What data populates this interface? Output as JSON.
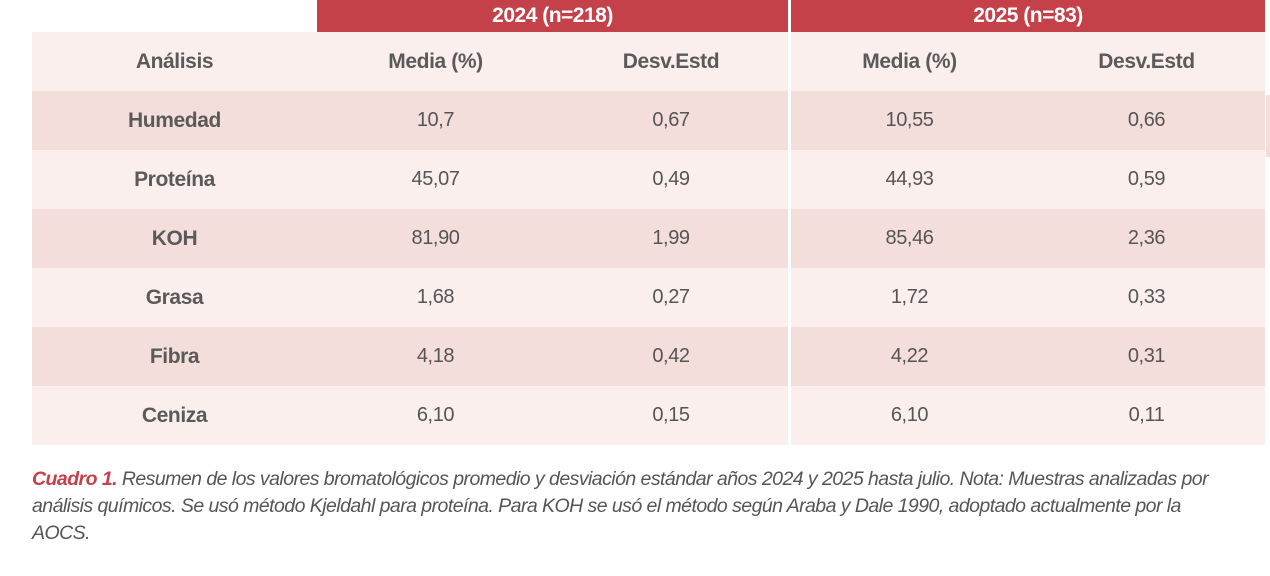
{
  "table": {
    "groups": {
      "g2024": "2024 (n=218)",
      "g2025": "2025 (n=83)"
    },
    "headers": {
      "analisis": "Análisis",
      "media_2024": "Media (%)",
      "desv_2024": "Desv.Estd",
      "media_2025": "Media (%)",
      "desv_2025": "Desv.Estd"
    },
    "rows": [
      {
        "label": "Humedad",
        "media_2024": "10,7",
        "desv_2024": "0,67",
        "media_2025": "10,55",
        "desv_2025": "0,66"
      },
      {
        "label": "Proteína",
        "media_2024": "45,07",
        "desv_2024": "0,49",
        "media_2025": "44,93",
        "desv_2025": "0,59"
      },
      {
        "label": "KOH",
        "media_2024": "81,90",
        "desv_2024": "1,99",
        "media_2025": "85,46",
        "desv_2025": "2,36"
      },
      {
        "label": "Grasa",
        "media_2024": "1,68",
        "desv_2024": "0,27",
        "media_2025": "1,72",
        "desv_2025": "0,33"
      },
      {
        "label": "Fibra",
        "media_2024": "4,18",
        "desv_2024": "0,42",
        "media_2025": "4,22",
        "desv_2025": "0,31"
      },
      {
        "label": "Ceniza",
        "media_2024": "6,10",
        "desv_2024": "0,15",
        "media_2025": "6,10",
        "desv_2025": "0,11"
      }
    ]
  },
  "caption": {
    "lead": "Cuadro 1.",
    "text": " Resumen de los valores bromatológicos promedio y desviación estándar años 2024 y 2025 hasta julio. Nota: Muestras analizadas por análisis químicos. Se usó método Kjeldahl para proteína. Para KOH se usó el método según Araba y Dale 1990, adoptado actualmente por la AOCS."
  },
  "colors": {
    "header_red": "#c4414a",
    "row_dark": "#f3dedb",
    "row_light": "#fbefee",
    "text_gray": "#555555"
  }
}
